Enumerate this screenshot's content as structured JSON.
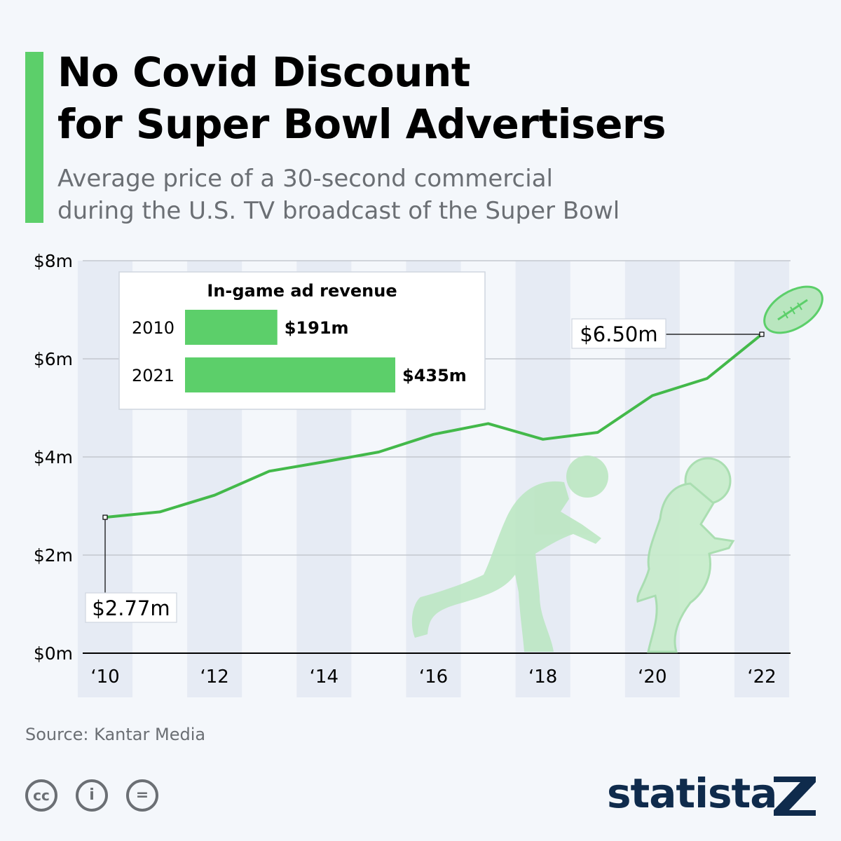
{
  "header": {
    "title_line1": "No Covid Discount",
    "title_line2": "for Super Bowl Advertisers",
    "subtitle_line1": "Average price of a 30-second commercial",
    "subtitle_line2": "during the U.S. TV broadcast of the Super Bowl"
  },
  "colors": {
    "accent": "#5ccf6a",
    "line": "#43b94a",
    "stripe": "#e6ebf4",
    "text": "#000000",
    "muted": "#6b6f74",
    "brand": "#0f2b4c"
  },
  "chart_data": {
    "type": "line",
    "title": "Average price of a 30-second commercial during the U.S. TV broadcast of the Super Bowl",
    "unit": "million USD",
    "x": [
      2010,
      2011,
      2012,
      2013,
      2014,
      2015,
      2016,
      2017,
      2018,
      2019,
      2020,
      2021,
      2022
    ],
    "xtick_labels": [
      "‘10",
      "‘12",
      "‘14",
      "‘16",
      "‘18",
      "‘20",
      "‘22"
    ],
    "xtick_years": [
      2010,
      2012,
      2014,
      2016,
      2018,
      2020,
      2022
    ],
    "series": [
      {
        "name": "Average price (30-second commercial)",
        "values": [
          2.77,
          2.88,
          3.22,
          3.71,
          3.9,
          4.1,
          4.46,
          4.68,
          4.36,
          4.5,
          5.25,
          5.6,
          6.5
        ]
      }
    ],
    "ylim": [
      0,
      8
    ],
    "yticks": [
      0,
      2,
      4,
      6,
      8
    ],
    "ytick_labels": [
      "$0m",
      "$2m",
      "$4m",
      "$6m",
      "$8m"
    ],
    "annotations": {
      "first": {
        "year": 2010,
        "label": "$2.77m"
      },
      "last": {
        "year": 2022,
        "label": "$6.50m"
      }
    },
    "inset": {
      "type": "bar",
      "title": "In-game ad revenue",
      "categories": [
        "2010",
        "2021"
      ],
      "values": [
        191,
        435
      ],
      "value_labels": [
        "$191m",
        "$435m"
      ]
    }
  },
  "footer": {
    "source": "Source: Kantar Media",
    "license_icons": [
      "cc-icon",
      "attribution-icon",
      "no-derivatives-icon"
    ],
    "license_glyphs": [
      "cc",
      "i",
      "="
    ],
    "brand": "statista"
  }
}
